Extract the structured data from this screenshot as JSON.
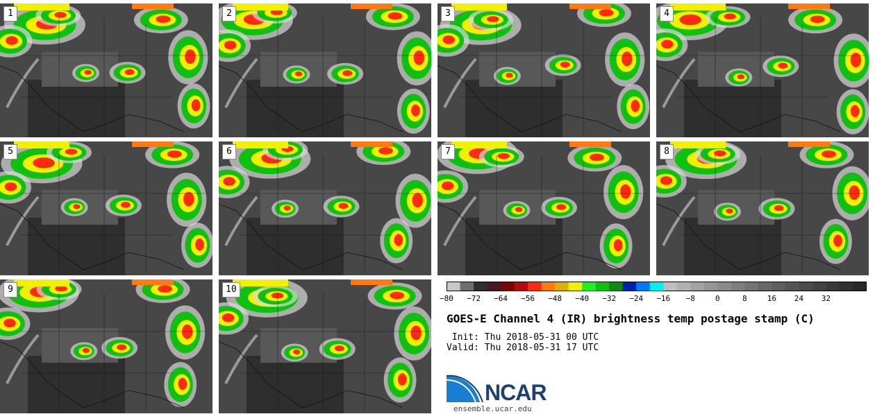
{
  "panels": [
    {
      "label": "1"
    },
    {
      "label": "2"
    },
    {
      "label": "3"
    },
    {
      "label": "4"
    },
    {
      "label": "5"
    },
    {
      "label": "6"
    },
    {
      "label": "7"
    },
    {
      "label": "8"
    },
    {
      "label": "9"
    },
    {
      "label": "10"
    }
  ],
  "colorbar": {
    "colors": [
      "#c8c8c8",
      "#6e6e6e",
      "#2f2f2f",
      "#4a1a1a",
      "#7a0505",
      "#b40a0a",
      "#ff2a10",
      "#ff7a10",
      "#e0b000",
      "#f0f000",
      "#20f020",
      "#10c010",
      "#108a10",
      "#0020b0",
      "#0078ff",
      "#00f0f0",
      "#bebebe",
      "#b0b0b0",
      "#a2a2a2",
      "#959595",
      "#8a8a8a",
      "#7e7e7e",
      "#737373",
      "#686868",
      "#5e5e5e",
      "#545454",
      "#4b4b4b",
      "#424242",
      "#393939",
      "#303030",
      "#282828"
    ],
    "ticks": [
      "−80",
      "−72",
      "−64",
      "−56",
      "−48",
      "−40",
      "−32",
      "−24",
      "−16",
      "−8",
      "0",
      "8",
      "16",
      "24",
      "32"
    ]
  },
  "title": "GOES-E Channel 4 (IR) brightness temp postage stamp (C)",
  "init": " Init: Thu 2018-05-31 00 UTC",
  "valid": "Valid: Thu 2018-05-31 17 UTC",
  "logo_text": "NCAR",
  "site": "ensemble.ucar.edu"
}
